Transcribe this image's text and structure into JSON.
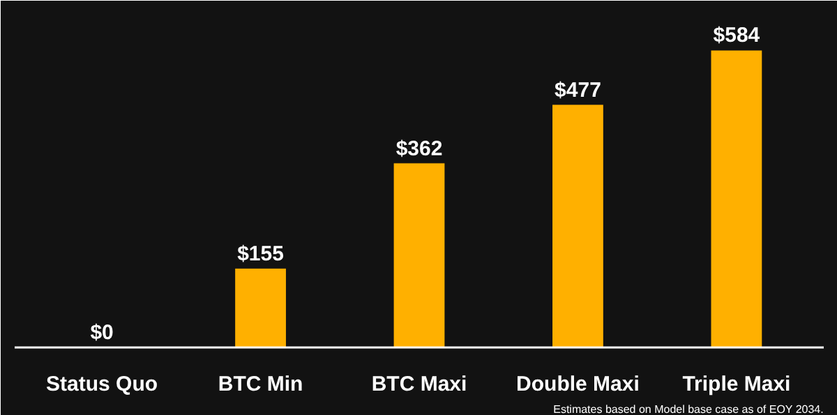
{
  "chart_data": {
    "type": "bar",
    "categories": [
      "Status Quo",
      "BTC Min",
      "BTC Maxi",
      "Double Maxi",
      "Triple Maxi"
    ],
    "values": [
      0,
      155,
      362,
      477,
      584
    ],
    "value_labels": [
      "$0",
      "$155",
      "$362",
      "$477",
      "$584"
    ],
    "color": "#ffb000",
    "data_labels": true,
    "grid": false,
    "annotations": [
      "Estimates based on Model base case as of EOY 2034."
    ]
  }
}
